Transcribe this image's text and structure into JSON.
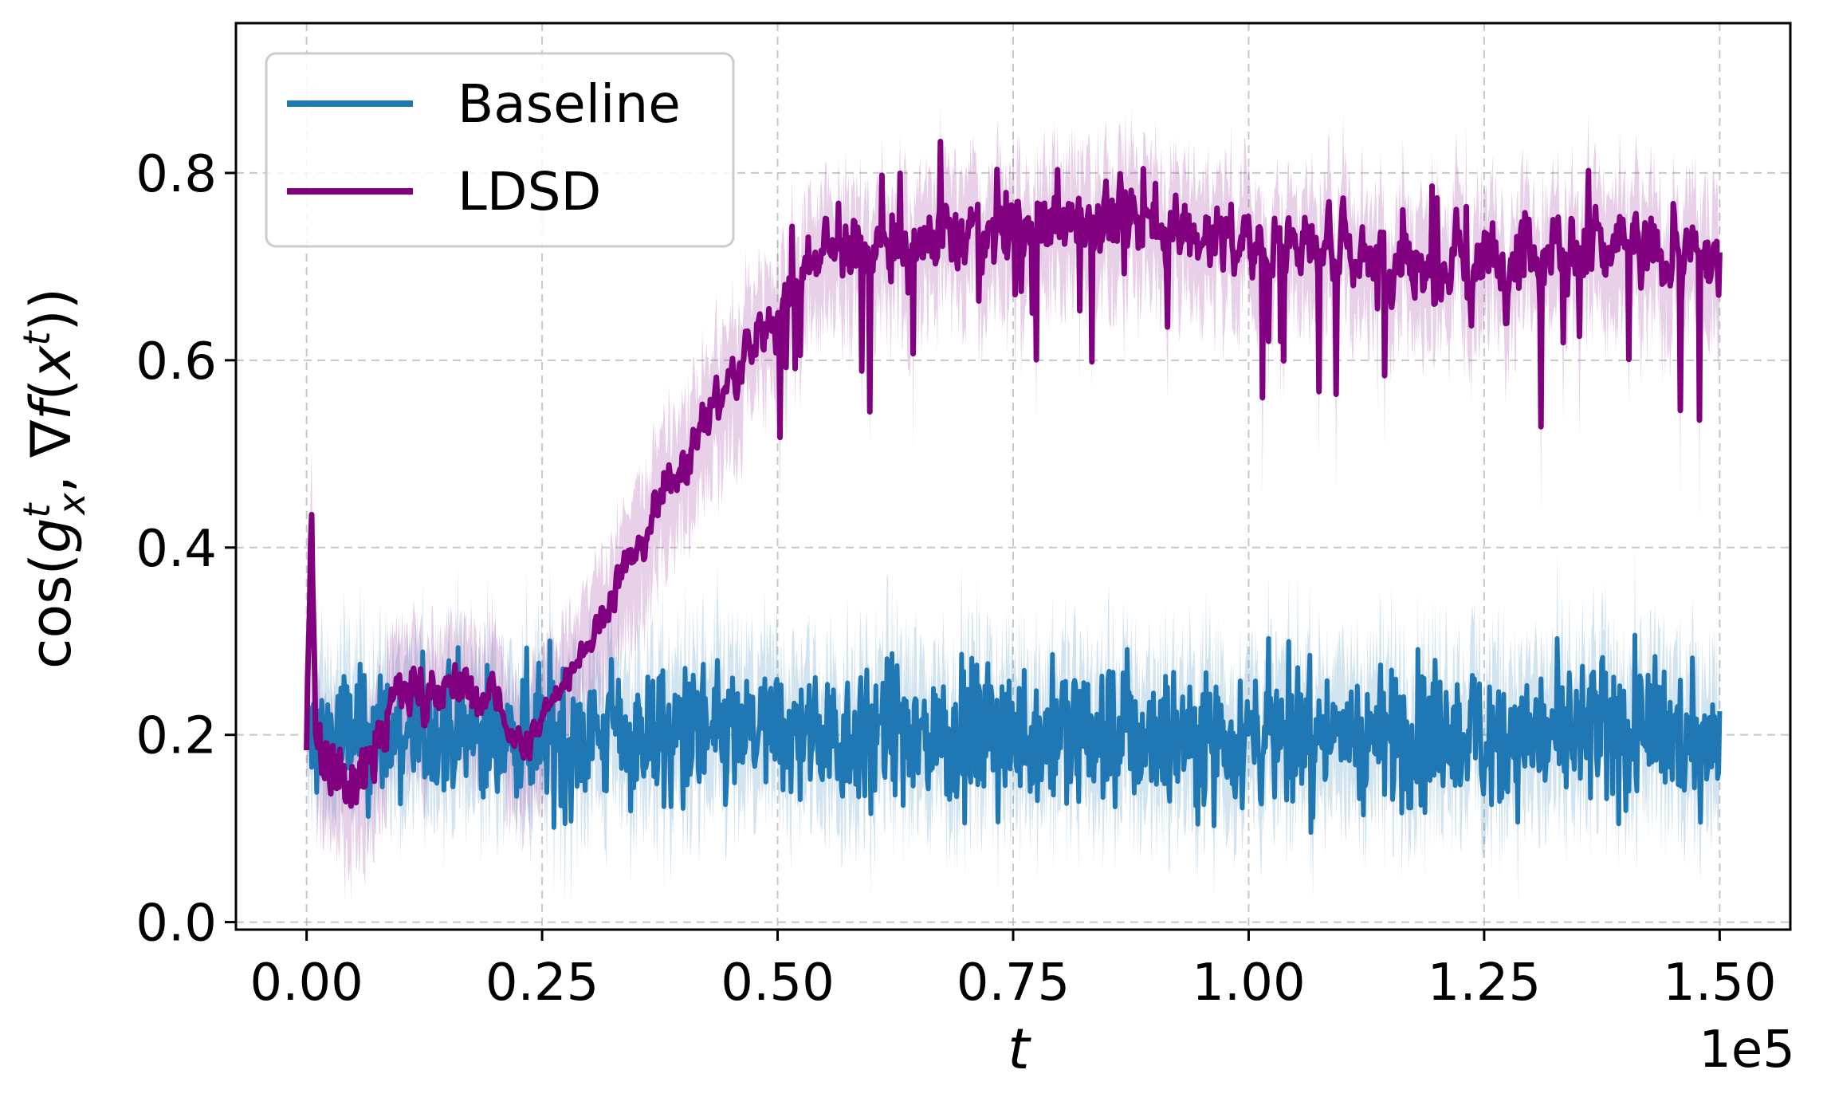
{
  "chart_data": {
    "type": "line",
    "xlabel": "t",
    "ylabel_parts": {
      "prefix": "cos(",
      "g": "g",
      "g_sup": "t",
      "g_sub": "x",
      "mid": ", ∇",
      "f": "f",
      "open": "(",
      "x": "x",
      "x_sup": "t",
      "suffix": "))"
    },
    "x_offset_label": "1e5",
    "xlim": [
      -0.075,
      1.575
    ],
    "ylim": [
      -0.008,
      0.96
    ],
    "xticks": [
      0.0,
      0.25,
      0.5,
      0.75,
      1.0,
      1.25,
      1.5
    ],
    "xtick_labels": [
      "0.00",
      "0.25",
      "0.50",
      "0.75",
      "1.00",
      "1.25",
      "1.50"
    ],
    "yticks": [
      0.0,
      0.2,
      0.4,
      0.6,
      0.8
    ],
    "ytick_labels": [
      "0.0",
      "0.2",
      "0.4",
      "0.6",
      "0.8"
    ],
    "grid": true,
    "legend_position": "top-left",
    "series": [
      {
        "name": "Baseline",
        "color": "#1f77b4",
        "band_color": "#1f77b4",
        "x": [
          0.0,
          0.01,
          0.02,
          0.05,
          0.1,
          0.2,
          0.3,
          0.5,
          0.75,
          1.0,
          1.25,
          1.5
        ],
        "mean": [
          0.2,
          0.2,
          0.2,
          0.2,
          0.2,
          0.2,
          0.2,
          0.2,
          0.2,
          0.2,
          0.2,
          0.2
        ],
        "low": [
          0.1,
          0.1,
          0.1,
          0.1,
          0.1,
          0.1,
          0.1,
          0.1,
          0.1,
          0.1,
          0.1,
          0.1
        ],
        "high": [
          0.3,
          0.3,
          0.3,
          0.3,
          0.3,
          0.3,
          0.3,
          0.3,
          0.3,
          0.3,
          0.3,
          0.3
        ]
      },
      {
        "name": "LDSD",
        "color": "#800080",
        "band_color": "#800080",
        "x": [
          0.0,
          0.005,
          0.01,
          0.02,
          0.05,
          0.1,
          0.15,
          0.2,
          0.23,
          0.25,
          0.3,
          0.35,
          0.4,
          0.45,
          0.5,
          0.55,
          0.6,
          0.7,
          0.8,
          0.9,
          1.0,
          1.1,
          1.2,
          1.3,
          1.4,
          1.5
        ],
        "mean": [
          0.2,
          0.45,
          0.2,
          0.18,
          0.15,
          0.25,
          0.25,
          0.24,
          0.18,
          0.22,
          0.3,
          0.4,
          0.5,
          0.58,
          0.65,
          0.72,
          0.72,
          0.73,
          0.75,
          0.75,
          0.72,
          0.72,
          0.7,
          0.72,
          0.72,
          0.7
        ],
        "amp": [
          0.08,
          0.05,
          0.08,
          0.08,
          0.08,
          0.05,
          0.05,
          0.04,
          0.03,
          0.03,
          0.03,
          0.04,
          0.05,
          0.05,
          0.06,
          0.06,
          0.07,
          0.07,
          0.07,
          0.07,
          0.07,
          0.07,
          0.08,
          0.08,
          0.08,
          0.08
        ]
      }
    ]
  }
}
